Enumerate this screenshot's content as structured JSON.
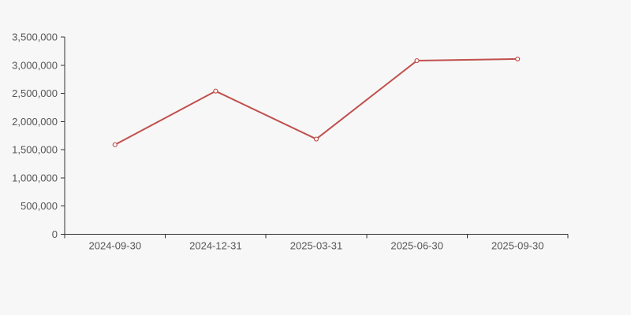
{
  "page": {
    "background": "#f7f7f7"
  },
  "chart_data": {
    "type": "line",
    "title": "",
    "xlabel": "",
    "ylabel": "",
    "categories": [
      "2024-09-30",
      "2024-12-31",
      "2025-03-31",
      "2025-06-30",
      "2025-09-30"
    ],
    "values": [
      1590000,
      2540000,
      1690000,
      3080000,
      3110000
    ],
    "ylim": [
      0,
      3500000
    ],
    "y_tick_step": 500000,
    "y_tick_labels": [
      "0",
      "500,000",
      "1,000,000",
      "1,500,000",
      "2,000,000",
      "2,500,000",
      "3,000,000",
      "3,500,000"
    ],
    "grid": false,
    "legend": "none",
    "layout_hints": {
      "x_axis_boundary_ticks": true,
      "marker": "open-circle"
    },
    "styles": {
      "line_color": "#c0504d",
      "marker_fill": "#ffffff",
      "axis_color": "#333333",
      "label_color": "#555555",
      "background": "#f7f7f7"
    }
  }
}
